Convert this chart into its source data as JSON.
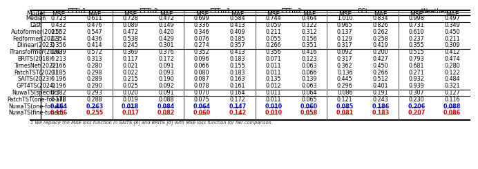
{
  "footnote": "1 We replace the MAE loss function in SAITS [8] and BRITS [6] with MSE loss function for fair comparison.",
  "col_groups": [
    "ETTh1",
    "ETTh2",
    "ETTm1",
    "ETTm2",
    "ECL",
    "Weather"
  ],
  "rows": [
    {
      "model": "Median",
      "values": [
        0.723,
        0.611,
        0.728,
        0.472,
        0.699,
        0.584,
        0.744,
        0.464,
        1.01,
        0.834,
        0.998,
        0.497
      ],
      "style": "normal",
      "group": 0
    },
    {
      "model": "Last",
      "values": [
        0.432,
        0.476,
        0.089,
        0.149,
        0.336,
        0.413,
        0.059,
        0.122,
        0.965,
        0.826,
        0.731,
        0.349
      ],
      "style": "normal",
      "group": 0
    },
    {
      "model": "Autoformer(2021)",
      "values": [
        0.552,
        0.547,
        0.472,
        0.42,
        0.346,
        0.409,
        0.211,
        0.312,
        0.137,
        0.262,
        0.61,
        0.45
      ],
      "style": "normal",
      "group": 1
    },
    {
      "model": "Fedformer(2022)",
      "values": [
        0.354,
        0.436,
        0.538,
        0.429,
        0.076,
        0.185,
        0.055,
        0.156,
        0.129,
        0.258,
        0.237,
        0.211
      ],
      "style": "normal",
      "group": 1
    },
    {
      "model": "Dlinear(2023)",
      "values": [
        0.356,
        0.414,
        0.245,
        0.301,
        0.274,
        0.357,
        0.266,
        0.351,
        0.317,
        0.419,
        0.355,
        0.309
      ],
      "style": "normal",
      "group": 1
    },
    {
      "model": "iTransformer(2024)",
      "values": [
        0.639,
        0.572,
        0.369,
        0.376,
        0.352,
        0.413,
        0.356,
        0.416,
        0.092,
        0.2,
        0.515,
        0.412
      ],
      "style": "normal",
      "group": 1
    },
    {
      "model": "BRITS(2018)¹",
      "values": [
        0.213,
        0.313,
        0.117,
        0.172,
        0.096,
        0.183,
        0.071,
        0.123,
        0.317,
        0.427,
        0.793,
        0.474
      ],
      "style": "normal",
      "group": 2
    },
    {
      "model": "TimesNet(2022)",
      "values": [
        0.166,
        0.28,
        0.021,
        0.091,
        0.066,
        0.155,
        0.011,
        0.063,
        0.362,
        0.45,
        0.681,
        0.28
      ],
      "style": "normal",
      "group": 2
    },
    {
      "model": "PatchTST(2023)",
      "values": [
        0.185,
        0.298,
        0.022,
        0.093,
        0.08,
        0.183,
        0.011,
        0.066,
        0.136,
        0.266,
        0.271,
        0.122
      ],
      "style": "normal",
      "group": 2
    },
    {
      "model": "SAITS(2023)¹",
      "values": [
        0.196,
        0.289,
        0.215,
        0.19,
        0.087,
        0.163,
        0.135,
        0.139,
        0.445,
        0.512,
        0.932,
        0.484
      ],
      "style": "normal",
      "group": 2
    },
    {
      "model": "GPT4TS(2024)",
      "values": [
        0.196,
        0.29,
        0.025,
        0.092,
        0.078,
        0.161,
        0.012,
        0.063,
        0.296,
        0.401,
        0.939,
        0.321
      ],
      "style": "normal",
      "group": 2
    },
    {
      "model": "NuwaTS(specific)",
      "values": [
        0.182,
        0.293,
        0.02,
        0.091,
        0.07,
        0.164,
        0.011,
        0.064,
        0.086,
        0.191,
        0.307,
        0.127
      ],
      "style": "normal",
      "group": 2
    },
    {
      "model": "PatchTST(one-for-all)",
      "values": [
        0.178,
        0.288,
        0.019,
        0.088,
        0.075,
        0.172,
        0.011,
        0.065,
        0.121,
        0.243,
        0.23,
        0.116
      ],
      "style": "normal",
      "group": 3
    },
    {
      "model": "NuwaTS(one-for-all)",
      "values": [
        0.164,
        0.263,
        0.018,
        0.084,
        0.064,
        0.147,
        0.01,
        0.06,
        0.085,
        0.186,
        0.206,
        0.088
      ],
      "style": "blue_bold",
      "group": 3
    },
    {
      "model": "NuwaTS(fine-tuned)",
      "values": [
        0.156,
        0.255,
        0.017,
        0.082,
        0.06,
        0.142,
        0.01,
        0.058,
        0.081,
        0.183,
        0.207,
        0.086
      ],
      "style": "red_bold",
      "group": 4
    }
  ],
  "group_breaks": [
    1,
    5,
    11,
    12
  ],
  "blue_row": 13,
  "red_row": 14,
  "red_blue_ul_col": 10
}
